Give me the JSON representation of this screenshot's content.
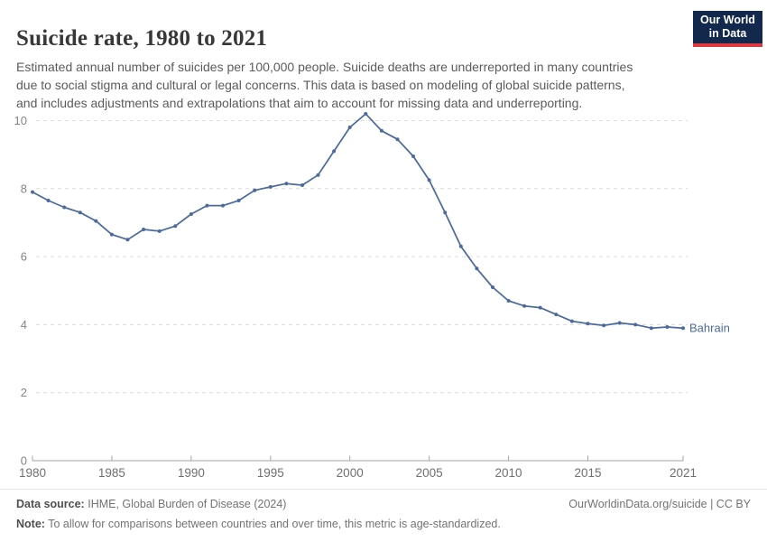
{
  "header": {
    "title": "Suicide rate, 1980 to 2021",
    "subtitle": "Estimated annual number of suicides per 100,000 people. Suicide deaths are underreported in many countries\ndue to social stigma and cultural or legal concerns. This data is based on modeling of global suicide patterns,\nand includes adjustments and extrapolations that aim to account for missing data and underreporting.",
    "logo": {
      "line1": "Our World",
      "line2": "in Data"
    }
  },
  "chart_data": {
    "type": "line",
    "title": "Suicide rate, 1980 to 2021",
    "xlabel": "",
    "ylabel": "",
    "xlim": [
      1980,
      2021
    ],
    "ylim": [
      0,
      10.5
    ],
    "y_ticks": [
      0,
      2,
      4,
      6,
      8,
      10
    ],
    "x_ticks": [
      1980,
      1985,
      1990,
      1995,
      2000,
      2005,
      2010,
      2015,
      2021
    ],
    "grid": "horizontal-dashed",
    "legend_position": "end-of-line",
    "series": [
      {
        "name": "Bahrain",
        "color": "#4C6A9C",
        "x": [
          1980,
          1981,
          1982,
          1983,
          1984,
          1985,
          1986,
          1987,
          1988,
          1989,
          1990,
          1991,
          1992,
          1993,
          1994,
          1995,
          1996,
          1997,
          1998,
          1999,
          2000,
          2001,
          2002,
          2003,
          2004,
          2005,
          2006,
          2007,
          2008,
          2009,
          2010,
          2011,
          2012,
          2013,
          2014,
          2015,
          2016,
          2017,
          2018,
          2019,
          2020,
          2021
        ],
        "values": [
          7.9,
          7.65,
          7.45,
          7.3,
          7.05,
          6.65,
          6.5,
          6.8,
          6.75,
          6.9,
          7.25,
          7.5,
          7.5,
          7.65,
          7.95,
          8.05,
          8.15,
          8.1,
          8.4,
          9.1,
          9.8,
          10.2,
          9.7,
          9.45,
          8.95,
          8.25,
          7.3,
          6.3,
          5.65,
          5.1,
          4.7,
          4.55,
          4.5,
          4.3,
          4.1,
          4.03,
          3.98,
          4.05,
          4.0,
          3.9,
          3.93,
          3.9
        ]
      }
    ]
  },
  "footer": {
    "datasource_label": "Data source:",
    "datasource_value": "IHME, Global Burden of Disease (2024)",
    "link": "OurWorldinData.org/suicide | CC BY",
    "note_label": "Note:",
    "note_value": "To allow for comparisons between countries and over time, this metric is age-standardized."
  },
  "colors": {
    "series_blue": "#4C6A9C",
    "logo_navy": "#12284c",
    "logo_red": "#dc3a40",
    "gridline": "#dcdcdc",
    "axis": "#a3a3a3"
  }
}
